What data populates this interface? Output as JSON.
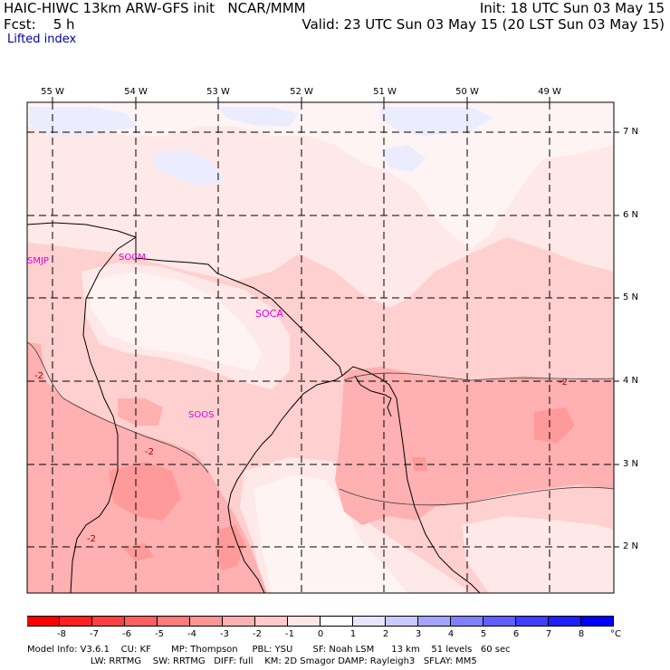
{
  "header": {
    "left_line1": "HAIC-HIWC 13km ARW-GFS init   NCAR/MMM",
    "left_line2": "Fcst:    5 h",
    "right_line1": "Init: 18 UTC Sun 03 May 15",
    "right_line2": "Valid: 23 UTC Sun 03 May 15 (20 LST Sun 03 May 15)",
    "field_name": "Lifted index"
  },
  "map": {
    "longitude_labels": [
      "55 W",
      "54 W",
      "53 W",
      "52 W",
      "51 W",
      "50 W",
      "49 W"
    ],
    "latitude_labels": [
      "7 N",
      "6 N",
      "5 N",
      "4 N",
      "3 N",
      "2 N"
    ],
    "stations": [
      "SMJP",
      "SOCM",
      "SOCA",
      "SOOS"
    ],
    "contour_labels": [
      "-2",
      "-2",
      "-2",
      "-2"
    ]
  },
  "colorbar": {
    "ticks": [
      "-8",
      "-7",
      "-6",
      "-5",
      "-4",
      "-3",
      "-2",
      "-1",
      "0",
      "1",
      "2",
      "3",
      "4",
      "5",
      "6",
      "7",
      "8"
    ],
    "unit": "°C",
    "colors": [
      "#ff0000",
      "#ff2020",
      "#ff4040",
      "#ff5f5f",
      "#ff7a7a",
      "#ff9595",
      "#ffb0b0",
      "#ffcaca",
      "#ffe6e6",
      "#ffffff",
      "#e6e6ff",
      "#cacaff",
      "#a5a5ff",
      "#8080ff",
      "#5f5fff",
      "#3f3fff",
      "#1f1fff",
      "#0000ff"
    ]
  },
  "footer": {
    "line1": "Model Info: V3.6.1    CU: KF       MP: Thompson     PBL: YSU       SF: Noah LSM      13 km    51 levels   60 sec",
    "line2": "                      LW: RRTMG    SW: RRTMG   DIFF: full    KM: 2D Smagor DAMP: Rayleigh3   SFLAY: MM5"
  }
}
